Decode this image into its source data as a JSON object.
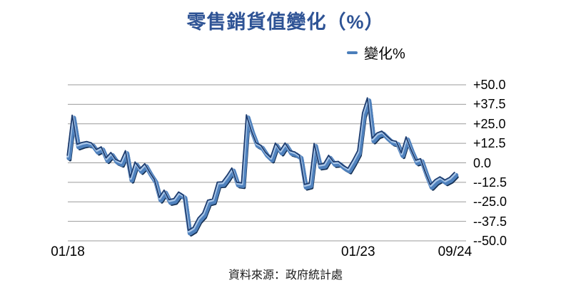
{
  "title": "零售銷貨值變化（%）",
  "legend": {
    "label": "變化%",
    "marker_color": "#4A7EBB"
  },
  "source": "資料來源：政府統計處",
  "colors": {
    "title": "#2E5395",
    "gridline": "#9B9B9B",
    "line_shadow": "#142F52",
    "line_face": "#4F81BD",
    "line_highlight": "#A9C7E9",
    "line_outline": "#1E3C6E"
  },
  "chart_data": {
    "type": "line",
    "style": "3d-ribbon-line",
    "title": "零售銷貨值變化（%）",
    "legend_position": "top-right",
    "grid": "horizontal",
    "x_start": "01/18",
    "x_end": "09/24",
    "x_frequency": "monthly",
    "ylim": [
      -50,
      50
    ],
    "y_ticks": [
      {
        "label": "+50.0",
        "value": 50
      },
      {
        "label": "+37.5",
        "value": 37.5
      },
      {
        "label": "+25.0",
        "value": 25
      },
      {
        "label": "+12.5",
        "value": 12.5
      },
      {
        "label": "0.0",
        "value": 0
      },
      {
        "label": "--12.5",
        "value": -12.5
      },
      {
        "label": "--25.0",
        "value": -25
      },
      {
        "label": "--37.5",
        "value": -37.5
      },
      {
        "label": "--50.0",
        "value": -50
      }
    ],
    "x_tick_labels": [
      {
        "label": "01/18",
        "month_index": 0
      },
      {
        "label": "01/23",
        "month_index": 60
      },
      {
        "label": "09/24",
        "month_index": 80
      }
    ],
    "series": [
      {
        "name": "變化%",
        "values": [
          4.1,
          29.8,
          11.2,
          12.3,
          12.9,
          12.0,
          7.8,
          9.5,
          2.4,
          5.9,
          1.4,
          0.1,
          7.1,
          -10.1,
          -0.2,
          -4.5,
          -1.3,
          -6.7,
          -11.4,
          -22.9,
          -18.2,
          -24.4,
          -23.7,
          -19.4,
          -21.5,
          -44.0,
          -42.1,
          -36.1,
          -32.8,
          -24.7,
          -23.9,
          -13.1,
          -12.9,
          -8.8,
          -4.0,
          -13.2,
          -13.6,
          30.0,
          20.1,
          12.1,
          10.5,
          5.8,
          2.8,
          11.9,
          7.3,
          12.0,
          7.1,
          6.2,
          4.1,
          -14.6,
          -13.8,
          11.7,
          -1.7,
          -1.2,
          4.1,
          -0.1,
          0.2,
          -2.4,
          -4.2,
          1.1,
          7.0,
          31.3,
          40.9,
          15.0,
          18.4,
          19.6,
          16.5,
          13.7,
          13.0,
          5.6,
          15.9,
          7.8,
          0.9,
          1.9,
          -7.0,
          -14.7,
          -11.5,
          -9.7,
          -11.8,
          -10.1,
          -6.9
        ]
      }
    ]
  }
}
